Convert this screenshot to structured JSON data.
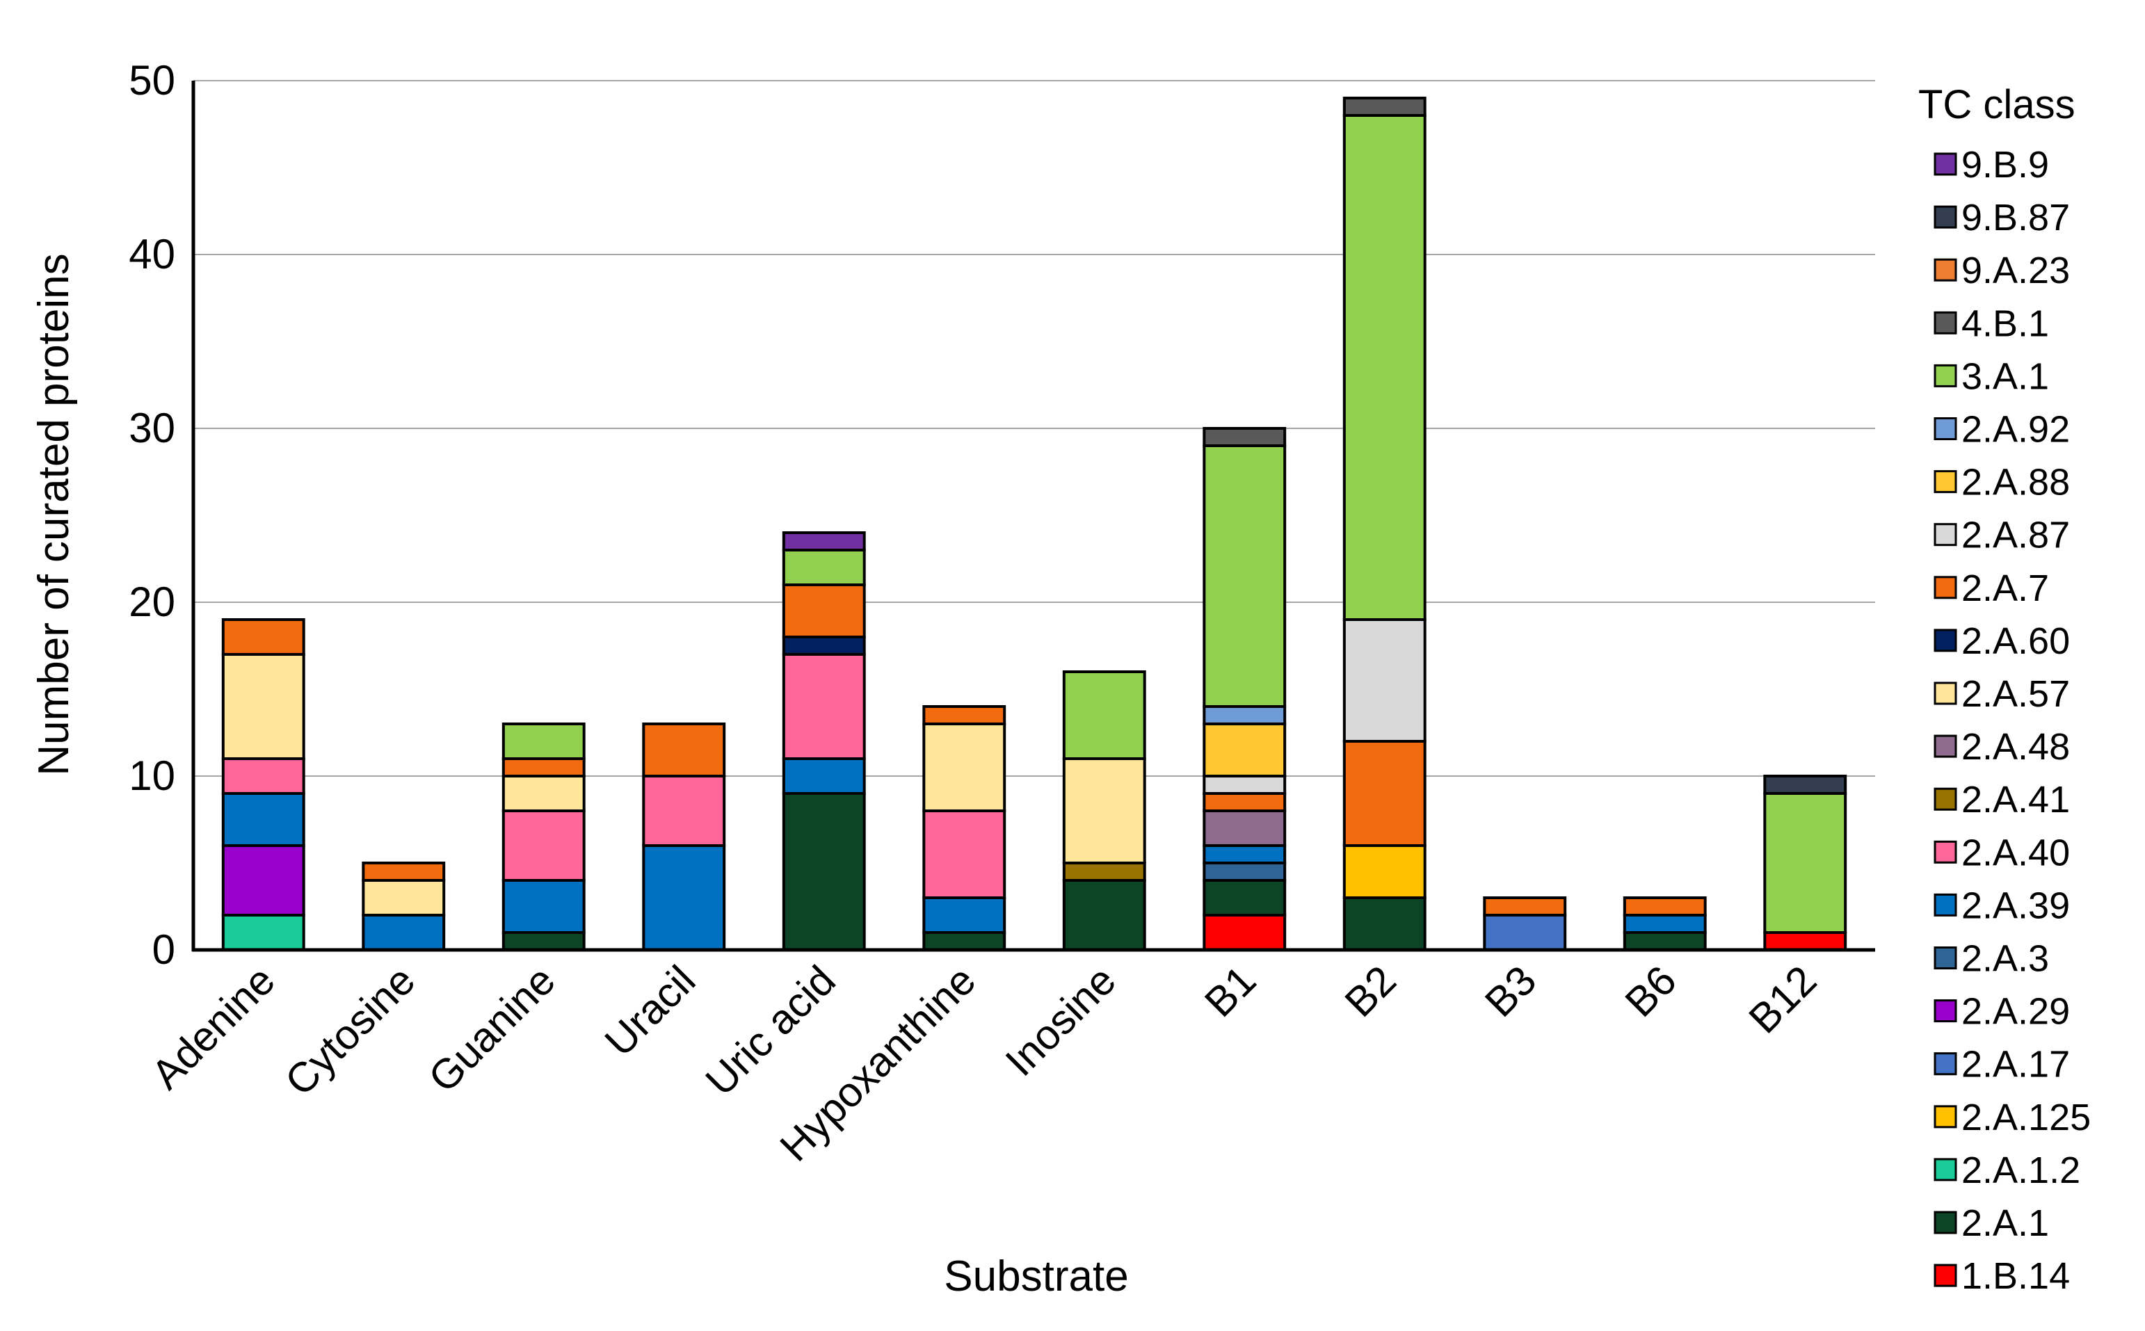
{
  "chart_data": {
    "type": "bar",
    "stacked": true,
    "title": "",
    "xlabel": "Substrate",
    "ylabel": "Number of curated proteins",
    "ylim": [
      0,
      50
    ],
    "yticks": [
      0,
      10,
      20,
      30,
      40,
      50
    ],
    "grid": true,
    "legend_title": "TC class",
    "legend_position": "right",
    "categories": [
      "Adenine",
      "Cytosine",
      "Guanine",
      "Uracil",
      "Uric acid",
      "Hypoxanthine",
      "Inosine",
      "B1",
      "B2",
      "B3",
      "B6",
      "B12"
    ],
    "series": [
      {
        "name": "1.B.14",
        "color": "#ff0000",
        "values": [
          0,
          0,
          0,
          0,
          0,
          0,
          0,
          2,
          0,
          0,
          0,
          1
        ]
      },
      {
        "name": "2.A.1",
        "color": "#0b4525",
        "values": [
          0,
          0,
          1,
          0,
          9,
          1,
          4,
          2,
          3,
          0,
          1,
          0
        ]
      },
      {
        "name": "2.A.1.2",
        "color": "#19cc99",
        "values": [
          2,
          0,
          0,
          0,
          0,
          0,
          0,
          0,
          0,
          0,
          0,
          0
        ]
      },
      {
        "name": "2.A.125",
        "color": "#ffc000",
        "values": [
          0,
          0,
          0,
          0,
          0,
          0,
          0,
          0,
          3,
          0,
          0,
          0
        ]
      },
      {
        "name": "2.A.17",
        "color": "#4472c4",
        "values": [
          0,
          0,
          0,
          0,
          0,
          0,
          0,
          0,
          0,
          2,
          0,
          0
        ]
      },
      {
        "name": "2.A.29",
        "color": "#9900cc",
        "values": [
          4,
          0,
          0,
          0,
          0,
          0,
          0,
          0,
          0,
          0,
          0,
          0
        ]
      },
      {
        "name": "2.A.3",
        "color": "#2e6496",
        "values": [
          0,
          0,
          0,
          0,
          0,
          0,
          0,
          1,
          0,
          0,
          0,
          0
        ]
      },
      {
        "name": "2.A.39",
        "color": "#0070c0",
        "values": [
          3,
          2,
          3,
          6,
          2,
          2,
          0,
          1,
          0,
          0,
          1,
          0
        ]
      },
      {
        "name": "2.A.40",
        "color": "#ff6699",
        "values": [
          2,
          0,
          4,
          4,
          6,
          5,
          0,
          0,
          0,
          0,
          0,
          0
        ]
      },
      {
        "name": "2.A.41",
        "color": "#997300",
        "values": [
          0,
          0,
          0,
          0,
          0,
          0,
          1,
          0,
          0,
          0,
          0,
          0
        ]
      },
      {
        "name": "2.A.48",
        "color": "#8e6b8f",
        "values": [
          0,
          0,
          0,
          0,
          0,
          0,
          0,
          2,
          0,
          0,
          0,
          0
        ]
      },
      {
        "name": "2.A.57",
        "color": "#ffe699",
        "values": [
          6,
          2,
          2,
          0,
          0,
          5,
          6,
          0,
          0,
          0,
          0,
          0
        ]
      },
      {
        "name": "2.A.60",
        "color": "#002060",
        "values": [
          0,
          0,
          0,
          0,
          1,
          0,
          0,
          0,
          0,
          0,
          0,
          0
        ]
      },
      {
        "name": "2.A.7",
        "color": "#f26b0f",
        "values": [
          2,
          1,
          1,
          3,
          3,
          1,
          0,
          1,
          6,
          1,
          1,
          0
        ]
      },
      {
        "name": "2.A.87",
        "color": "#d9d9d9",
        "values": [
          0,
          0,
          0,
          0,
          0,
          0,
          0,
          1,
          7,
          0,
          0,
          0
        ]
      },
      {
        "name": "2.A.88",
        "color": "#ffc832",
        "values": [
          0,
          0,
          0,
          0,
          0,
          0,
          0,
          3,
          0,
          0,
          0,
          0
        ]
      },
      {
        "name": "2.A.92",
        "color": "#6f9bd6",
        "values": [
          0,
          0,
          0,
          0,
          0,
          0,
          0,
          1,
          0,
          0,
          0,
          0
        ]
      },
      {
        "name": "3.A.1",
        "color": "#92d050",
        "values": [
          0,
          0,
          2,
          0,
          2,
          0,
          5,
          15,
          29,
          0,
          0,
          8
        ]
      },
      {
        "name": "4.B.1",
        "color": "#595959",
        "values": [
          0,
          0,
          0,
          0,
          0,
          0,
          0,
          1,
          1,
          0,
          0,
          0
        ]
      },
      {
        "name": "9.A.23",
        "color": "#ed7d31",
        "values": [
          0,
          0,
          0,
          0,
          0,
          0,
          0,
          0,
          0,
          0,
          0,
          0
        ]
      },
      {
        "name": "9.B.87",
        "color": "#333f50",
        "values": [
          0,
          0,
          0,
          0,
          0,
          0,
          0,
          0,
          0,
          0,
          0,
          1
        ]
      },
      {
        "name": "9.B.9",
        "color": "#7030a0",
        "values": [
          0,
          0,
          0,
          0,
          1,
          0,
          0,
          0,
          0,
          0,
          0,
          0
        ]
      }
    ]
  }
}
